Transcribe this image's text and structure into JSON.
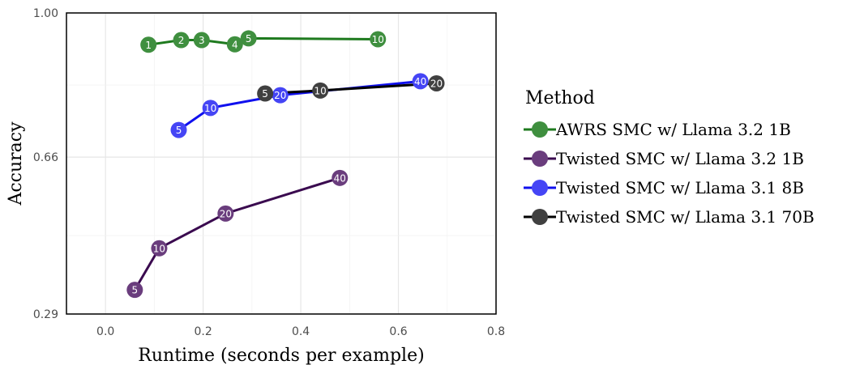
{
  "chart_data": {
    "type": "line",
    "title": "",
    "xlabel": "Runtime (seconds per example)",
    "ylabel": "Accuracy",
    "xlim": [
      -0.08,
      0.8
    ],
    "ylim": [
      0.29,
      1.0
    ],
    "xticks": [
      0.0,
      0.2,
      0.4,
      0.6,
      0.8
    ],
    "xtick_labels": [
      "0.0",
      "0.2",
      "0.4",
      "0.6",
      "0.8"
    ],
    "yticks": [
      0.29,
      0.66,
      1.0
    ],
    "ytick_labels": [
      "0.29",
      "0.66",
      "1.00"
    ],
    "grid": true,
    "legend": {
      "title": "Method",
      "placement": "right"
    },
    "series": [
      {
        "name": "AWRS SMC w/ Llama 3.2 1B",
        "color": "#1e7a1e",
        "marker_color": "#3f8f3f",
        "points": [
          {
            "x": 0.088,
            "y": 0.925,
            "label": "1"
          },
          {
            "x": 0.155,
            "y": 0.936,
            "label": "2"
          },
          {
            "x": 0.197,
            "y": 0.936,
            "label": "3"
          },
          {
            "x": 0.265,
            "y": 0.926,
            "label": "4"
          },
          {
            "x": 0.293,
            "y": 0.94,
            "label": "5"
          },
          {
            "x": 0.558,
            "y": 0.938,
            "label": "10"
          }
        ]
      },
      {
        "name": "Twisted SMC w/ Llama 3.2 1B",
        "color": "#3a0a4f",
        "marker_color": "#6a3d7d",
        "points": [
          {
            "x": 0.06,
            "y": 0.347,
            "label": "5"
          },
          {
            "x": 0.11,
            "y": 0.445,
            "label": "10"
          },
          {
            "x": 0.246,
            "y": 0.527,
            "label": "20"
          },
          {
            "x": 0.48,
            "y": 0.611,
            "label": "40"
          }
        ]
      },
      {
        "name": "Twisted SMC w/ Llama 3.1 8B",
        "color": "#1010ee",
        "marker_color": "#4545f5",
        "points": [
          {
            "x": 0.15,
            "y": 0.724,
            "label": "5"
          },
          {
            "x": 0.215,
            "y": 0.776,
            "label": "10"
          },
          {
            "x": 0.358,
            "y": 0.806,
            "label": "20"
          },
          {
            "x": 0.645,
            "y": 0.839,
            "label": "40"
          }
        ]
      },
      {
        "name": "Twisted SMC w/ Llama 3.1 70B",
        "color": "#000000",
        "marker_color": "#404040",
        "points": [
          {
            "x": 0.327,
            "y": 0.81,
            "label": "5"
          },
          {
            "x": 0.44,
            "y": 0.817,
            "label": "10"
          },
          {
            "x": 0.678,
            "y": 0.834,
            "label": "20"
          }
        ]
      }
    ]
  }
}
